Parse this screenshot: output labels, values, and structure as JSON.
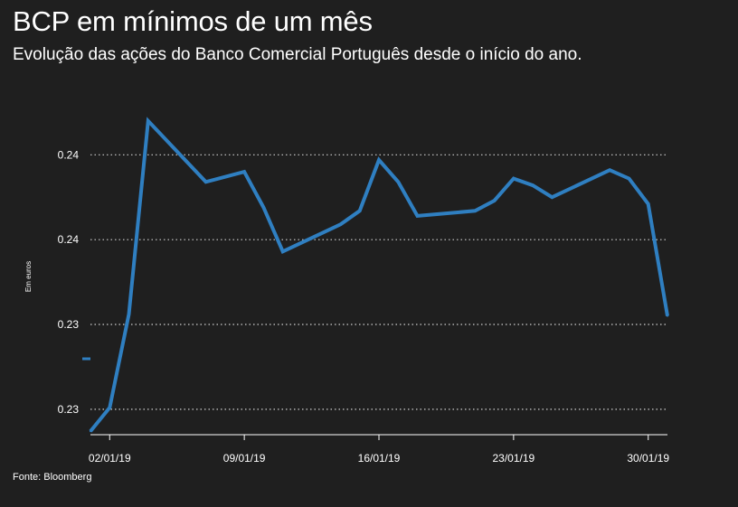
{
  "header": {
    "title": "BCP em mínimos de um mês",
    "subtitle": "Evolução das ações do Banco Comercial Português desde o início do ano."
  },
  "footer": {
    "source": "Fonte: Bloomberg"
  },
  "colors": {
    "background": "#1f1f1f",
    "line": "#2f7fc1",
    "text": "#ffffff",
    "grid": "#cfcfcf"
  },
  "chart_data": {
    "type": "line",
    "title": "BCP em mínimos de um mês",
    "subtitle": "Evolução das ações do Banco Comercial Português desde o início do ano.",
    "xlabel": "",
    "ylabel": "Em euros",
    "x_tick_labels": [
      "02/01/19",
      "09/01/19",
      "16/01/19",
      "23/01/19",
      "30/01/19"
    ],
    "y_tick_labels": [
      "0.24",
      "0.24",
      "0.23",
      "0.23"
    ],
    "y_tick_values": [
      0.245,
      0.24,
      0.235,
      0.23
    ],
    "ylim": [
      0.2285,
      0.2488
    ],
    "grid": "horizontal dotted",
    "legend": "none",
    "series": [
      {
        "x": [
          "01/01/19",
          "02/01/19",
          "03/01/19",
          "04/01/19",
          "07/01/19",
          "08/01/19",
          "09/01/19",
          "10/01/19",
          "11/01/19",
          "14/01/19",
          "15/01/19",
          "16/01/19",
          "17/01/19",
          "18/01/19",
          "21/01/19",
          "22/01/19",
          "23/01/19",
          "24/01/19",
          "25/01/19",
          "28/01/19",
          "29/01/19",
          "30/01/19",
          "31/01/19"
        ],
        "values": [
          0.2287,
          0.2301,
          0.2356,
          0.247,
          0.2434,
          0.2437,
          0.244,
          0.2419,
          0.2393,
          0.2409,
          0.2417,
          0.2447,
          0.2434,
          0.2414,
          0.2417,
          0.2423,
          0.2436,
          0.2432,
          0.2425,
          0.2441,
          0.2436,
          0.2421,
          0.2355
        ]
      }
    ]
  }
}
